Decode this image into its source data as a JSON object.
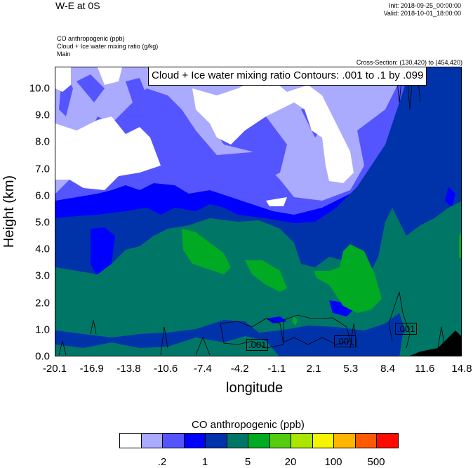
{
  "header": {
    "title": "W-E at 0S",
    "init": "Init: 2018-09-25_00:00:00",
    "valid": "Valid: 2018-10-01_18:00:00",
    "variables": [
      "CO anthropogenic   (ppb)",
      "Cloud + Ice water mixing ratio   (g/kg)",
      "Main"
    ],
    "cross_section": "Cross-Section: (130,420) to (454,420)"
  },
  "chart_data": {
    "type": "heatmap",
    "title": "W-E at 0S",
    "xlabel": "longitude",
    "ylabel": "Height (km)",
    "xlim": [
      -20.1,
      14.8
    ],
    "ylim": [
      0,
      10.8
    ],
    "x_ticks": [
      "-20.1",
      "-16.9",
      "-13.8",
      "-10.6",
      "-7.4",
      "-4.2",
      "-1.1",
      "2.1",
      "5.3",
      "8.4",
      "11.6",
      "14.8"
    ],
    "y_ticks": [
      "0.0",
      "1.0",
      "2.0",
      "3.0",
      "4.0",
      "5.0",
      "6.0",
      "7.0",
      "8.0",
      "9.0",
      "10.0"
    ],
    "contour_annotation": "Cloud + Ice water mixing ratio Contours: .001 to .1 by .099",
    "contour_labels": [
      ".001",
      ".001",
      ".001"
    ],
    "colorbar": {
      "title": "CO anthropogenic  (ppb)",
      "colors": [
        "#ffffff",
        "#aaaaff",
        "#5555ff",
        "#0000ff",
        "#0033aa",
        "#007766",
        "#00aa22",
        "#55cc11",
        "#aae600",
        "#f5f500",
        "#ffb400",
        "#ff5a00",
        "#ff0a00"
      ],
      "labels": [
        ".2",
        "1",
        "5",
        "20",
        "100",
        "500"
      ]
    }
  }
}
